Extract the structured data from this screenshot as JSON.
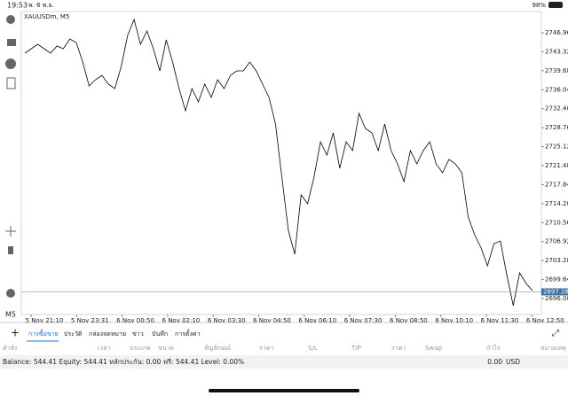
{
  "status_bar": {
    "time": "19:53",
    "date": "พ. 6 พ.ย.",
    "battery": "98%"
  },
  "chart_data": {
    "type": "line",
    "title": "XAUUSDm, M5",
    "xticks": [
      "5 Nov 21:10",
      "5 Nov 23:31",
      "6 Nov 00:50",
      "6 Nov 02:10",
      "6 Nov 03:30",
      "6 Nov 04:50",
      "6 Nov 06:10",
      "6 Nov 07:30",
      "6 Nov 08:50",
      "6 Nov 10:10",
      "6 Nov 11:30",
      "6 Nov 12:50"
    ],
    "values": [
      2743.05,
      2743.9,
      2744.75,
      2743.9,
      2743.05,
      2744.41,
      2743.9,
      2745.77,
      2745.09,
      2741.35,
      2736.77,
      2737.96,
      2738.81,
      2737.11,
      2736.26,
      2740.51,
      2746.45,
      2749.51,
      2744.75,
      2747.3,
      2743.9,
      2739.66,
      2745.6,
      2741.35,
      2736.26,
      2731.99,
      2736.26,
      2733.71,
      2737.11,
      2734.56,
      2737.96,
      2736.26,
      2738.81,
      2739.66,
      2739.66,
      2741.35,
      2739.66,
      2737.11,
      2734.56,
      2729.46,
      2719.27,
      2709.08,
      2704.49,
      2715.87,
      2714.17,
      2719.27,
      2726.07,
      2723.52,
      2727.76,
      2720.97,
      2726.07,
      2724.37,
      2731.5,
      2728.61,
      2727.76,
      2724.37,
      2729.46,
      2724.37,
      2721.82,
      2718.42,
      2724.37,
      2721.82,
      2724.37,
      2726.07,
      2721.82,
      2720.12,
      2722.67,
      2721.82,
      2720.12,
      2711.63,
      2708.23,
      2705.68,
      2702.28,
      2706.53,
      2707.04,
      2700.59,
      2694.64,
      2700.93,
      2698.89,
      2697.53
    ],
    "color": "#000000",
    "ylim": [
      2692.94,
      2751.04
    ],
    "yticks": [
      {
        "value": 2746.96,
        "label": "2746.960"
      },
      {
        "value": 2743.32,
        "label": "2743.320"
      },
      {
        "value": 2739.68,
        "label": "2739.680"
      },
      {
        "value": 2736.04,
        "label": "2736.040"
      },
      {
        "value": 2732.4,
        "label": "2732.400"
      },
      {
        "value": 2728.76,
        "label": "2728.760"
      },
      {
        "value": 2725.12,
        "label": "2725.120"
      },
      {
        "value": 2721.48,
        "label": "2721.480"
      },
      {
        "value": 2717.84,
        "label": "2717.840"
      },
      {
        "value": 2714.2,
        "label": "2714.200"
      },
      {
        "value": 2710.56,
        "label": "2710.560"
      },
      {
        "value": 2706.92,
        "label": "2706.920"
      },
      {
        "value": 2703.28,
        "label": "2703.280"
      },
      {
        "value": 2699.64,
        "label": "2699.640"
      },
      {
        "value": 2696,
        "label": "2696.000"
      }
    ],
    "current_price": {
      "value": 2697.28,
      "label": "2697.280"
    }
  },
  "toolbar": {
    "timeframe": "M5"
  },
  "tabs": [
    "การซื้อขาย",
    "ประวัติ",
    "กล่องจดหมาย",
    "ข่าว",
    "บันทึก",
    "การตั้งค่า"
  ],
  "table": {
    "headers": [
      "คำสั่ง",
      "เวลา",
      "ประเภท",
      "ขนาด",
      "สัญลักษณ์",
      "ราคา",
      "S/L",
      "T/P",
      "ราคา",
      "Swap",
      "กำไร",
      "หมายเหตุ"
    ]
  },
  "account": {
    "summary": "Balance: 544.41 Equity: 544.41 หลักประกัน: 0.00 ฟรี: 544.41 Level: 0.00%",
    "profit": "0.00",
    "currency": "USD"
  }
}
